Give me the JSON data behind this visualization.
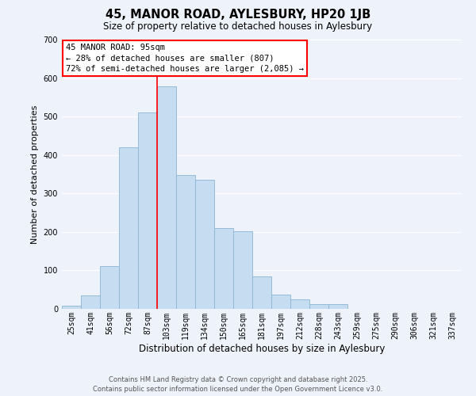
{
  "title": "45, MANOR ROAD, AYLESBURY, HP20 1JB",
  "subtitle": "Size of property relative to detached houses in Aylesbury",
  "xlabel": "Distribution of detached houses by size in Aylesbury",
  "ylabel": "Number of detached properties",
  "bin_labels": [
    "25sqm",
    "41sqm",
    "56sqm",
    "72sqm",
    "87sqm",
    "103sqm",
    "119sqm",
    "134sqm",
    "150sqm",
    "165sqm",
    "181sqm",
    "197sqm",
    "212sqm",
    "228sqm",
    "243sqm",
    "259sqm",
    "275sqm",
    "290sqm",
    "306sqm",
    "321sqm",
    "337sqm"
  ],
  "bar_values": [
    8,
    35,
    112,
    420,
    510,
    578,
    348,
    335,
    210,
    202,
    85,
    37,
    25,
    12,
    12,
    0,
    0,
    0,
    0,
    0,
    0
  ],
  "bar_color": "#c6dcf0",
  "bar_edge_color": "#8ab4d4",
  "ylim": [
    0,
    700
  ],
  "yticks": [
    0,
    100,
    200,
    300,
    400,
    500,
    600,
    700
  ],
  "vline_x": 4.5,
  "annotation_title": "45 MANOR ROAD: 95sqm",
  "annotation_line1": "← 28% of detached houses are smaller (807)",
  "annotation_line2": "72% of semi-detached houses are larger (2,085) →",
  "footer_line1": "Contains HM Land Registry data © Crown copyright and database right 2025.",
  "footer_line2": "Contains public sector information licensed under the Open Government Licence v3.0.",
  "bg_color": "#eef2fb",
  "grid_color": "#ffffff",
  "title_fontsize": 10.5,
  "subtitle_fontsize": 8.5,
  "ylabel_fontsize": 8,
  "xlabel_fontsize": 8.5,
  "tick_fontsize": 7,
  "annotation_fontsize": 7.5,
  "footer_fontsize": 6
}
